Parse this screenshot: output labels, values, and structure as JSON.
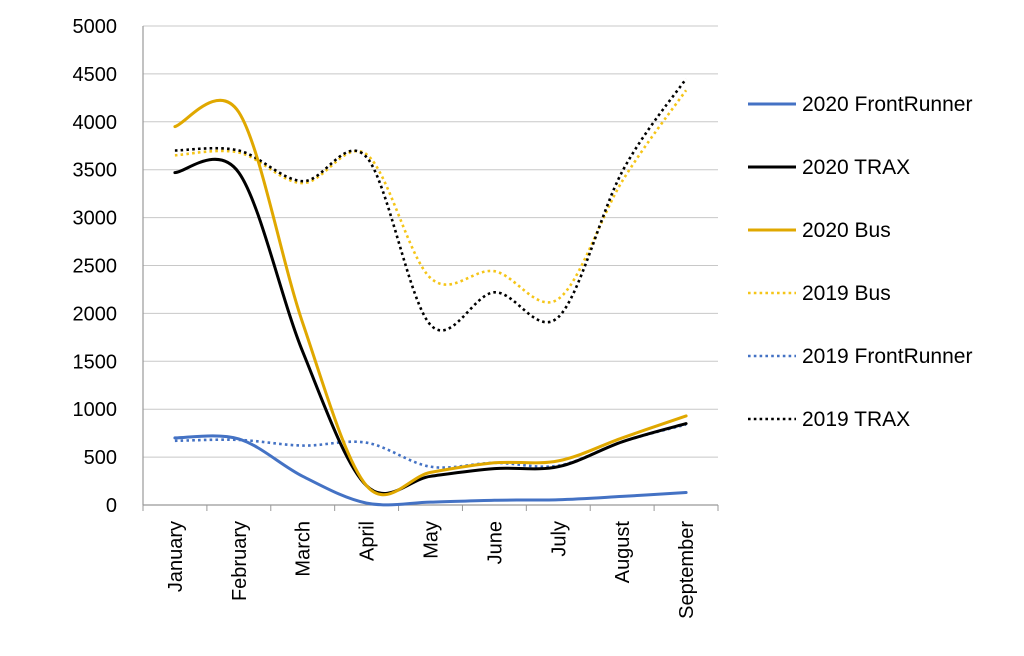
{
  "chart_data": {
    "type": "line",
    "title": "",
    "xlabel": "",
    "ylabel": "",
    "categories": [
      "January",
      "February",
      "March",
      "April",
      "May",
      "June",
      "July",
      "August",
      "September"
    ],
    "ylim": [
      0,
      5000
    ],
    "yticks": [
      "0",
      "500",
      "1000",
      "1500",
      "2000",
      "2500",
      "3000",
      "3500",
      "4000",
      "4500",
      "5000"
    ],
    "grid": "horizontal",
    "legend_position": "right",
    "series": [
      {
        "name": "2020 FrontRunner",
        "color": "#4472C4",
        "style": "solid",
        "values": [
          700,
          690,
          300,
          20,
          30,
          50,
          55,
          90,
          130
        ]
      },
      {
        "name": "2020 TRAX",
        "color": "#000000",
        "style": "solid",
        "values": [
          3470,
          3470,
          1600,
          200,
          300,
          380,
          400,
          660,
          850
        ]
      },
      {
        "name": "2020 Bus",
        "color": "#E0A800",
        "style": "solid",
        "values": [
          3950,
          4100,
          1900,
          200,
          340,
          440,
          460,
          700,
          930
        ]
      },
      {
        "name": "2019 Bus",
        "color": "#F5C518",
        "style": "dotted",
        "values": [
          3650,
          3680,
          3360,
          3660,
          2370,
          2440,
          2150,
          3380,
          4330
        ]
      },
      {
        "name": "2019 FrontRunner",
        "color": "#4472C4",
        "style": "dotted",
        "values": [
          670,
          680,
          620,
          650,
          400,
          440,
          410,
          660,
          840
        ]
      },
      {
        "name": "2019 TRAX",
        "color": "#000000",
        "style": "dotted",
        "values": [
          3700,
          3700,
          3380,
          3630,
          1880,
          2220,
          1960,
          3480,
          4450
        ]
      }
    ]
  }
}
